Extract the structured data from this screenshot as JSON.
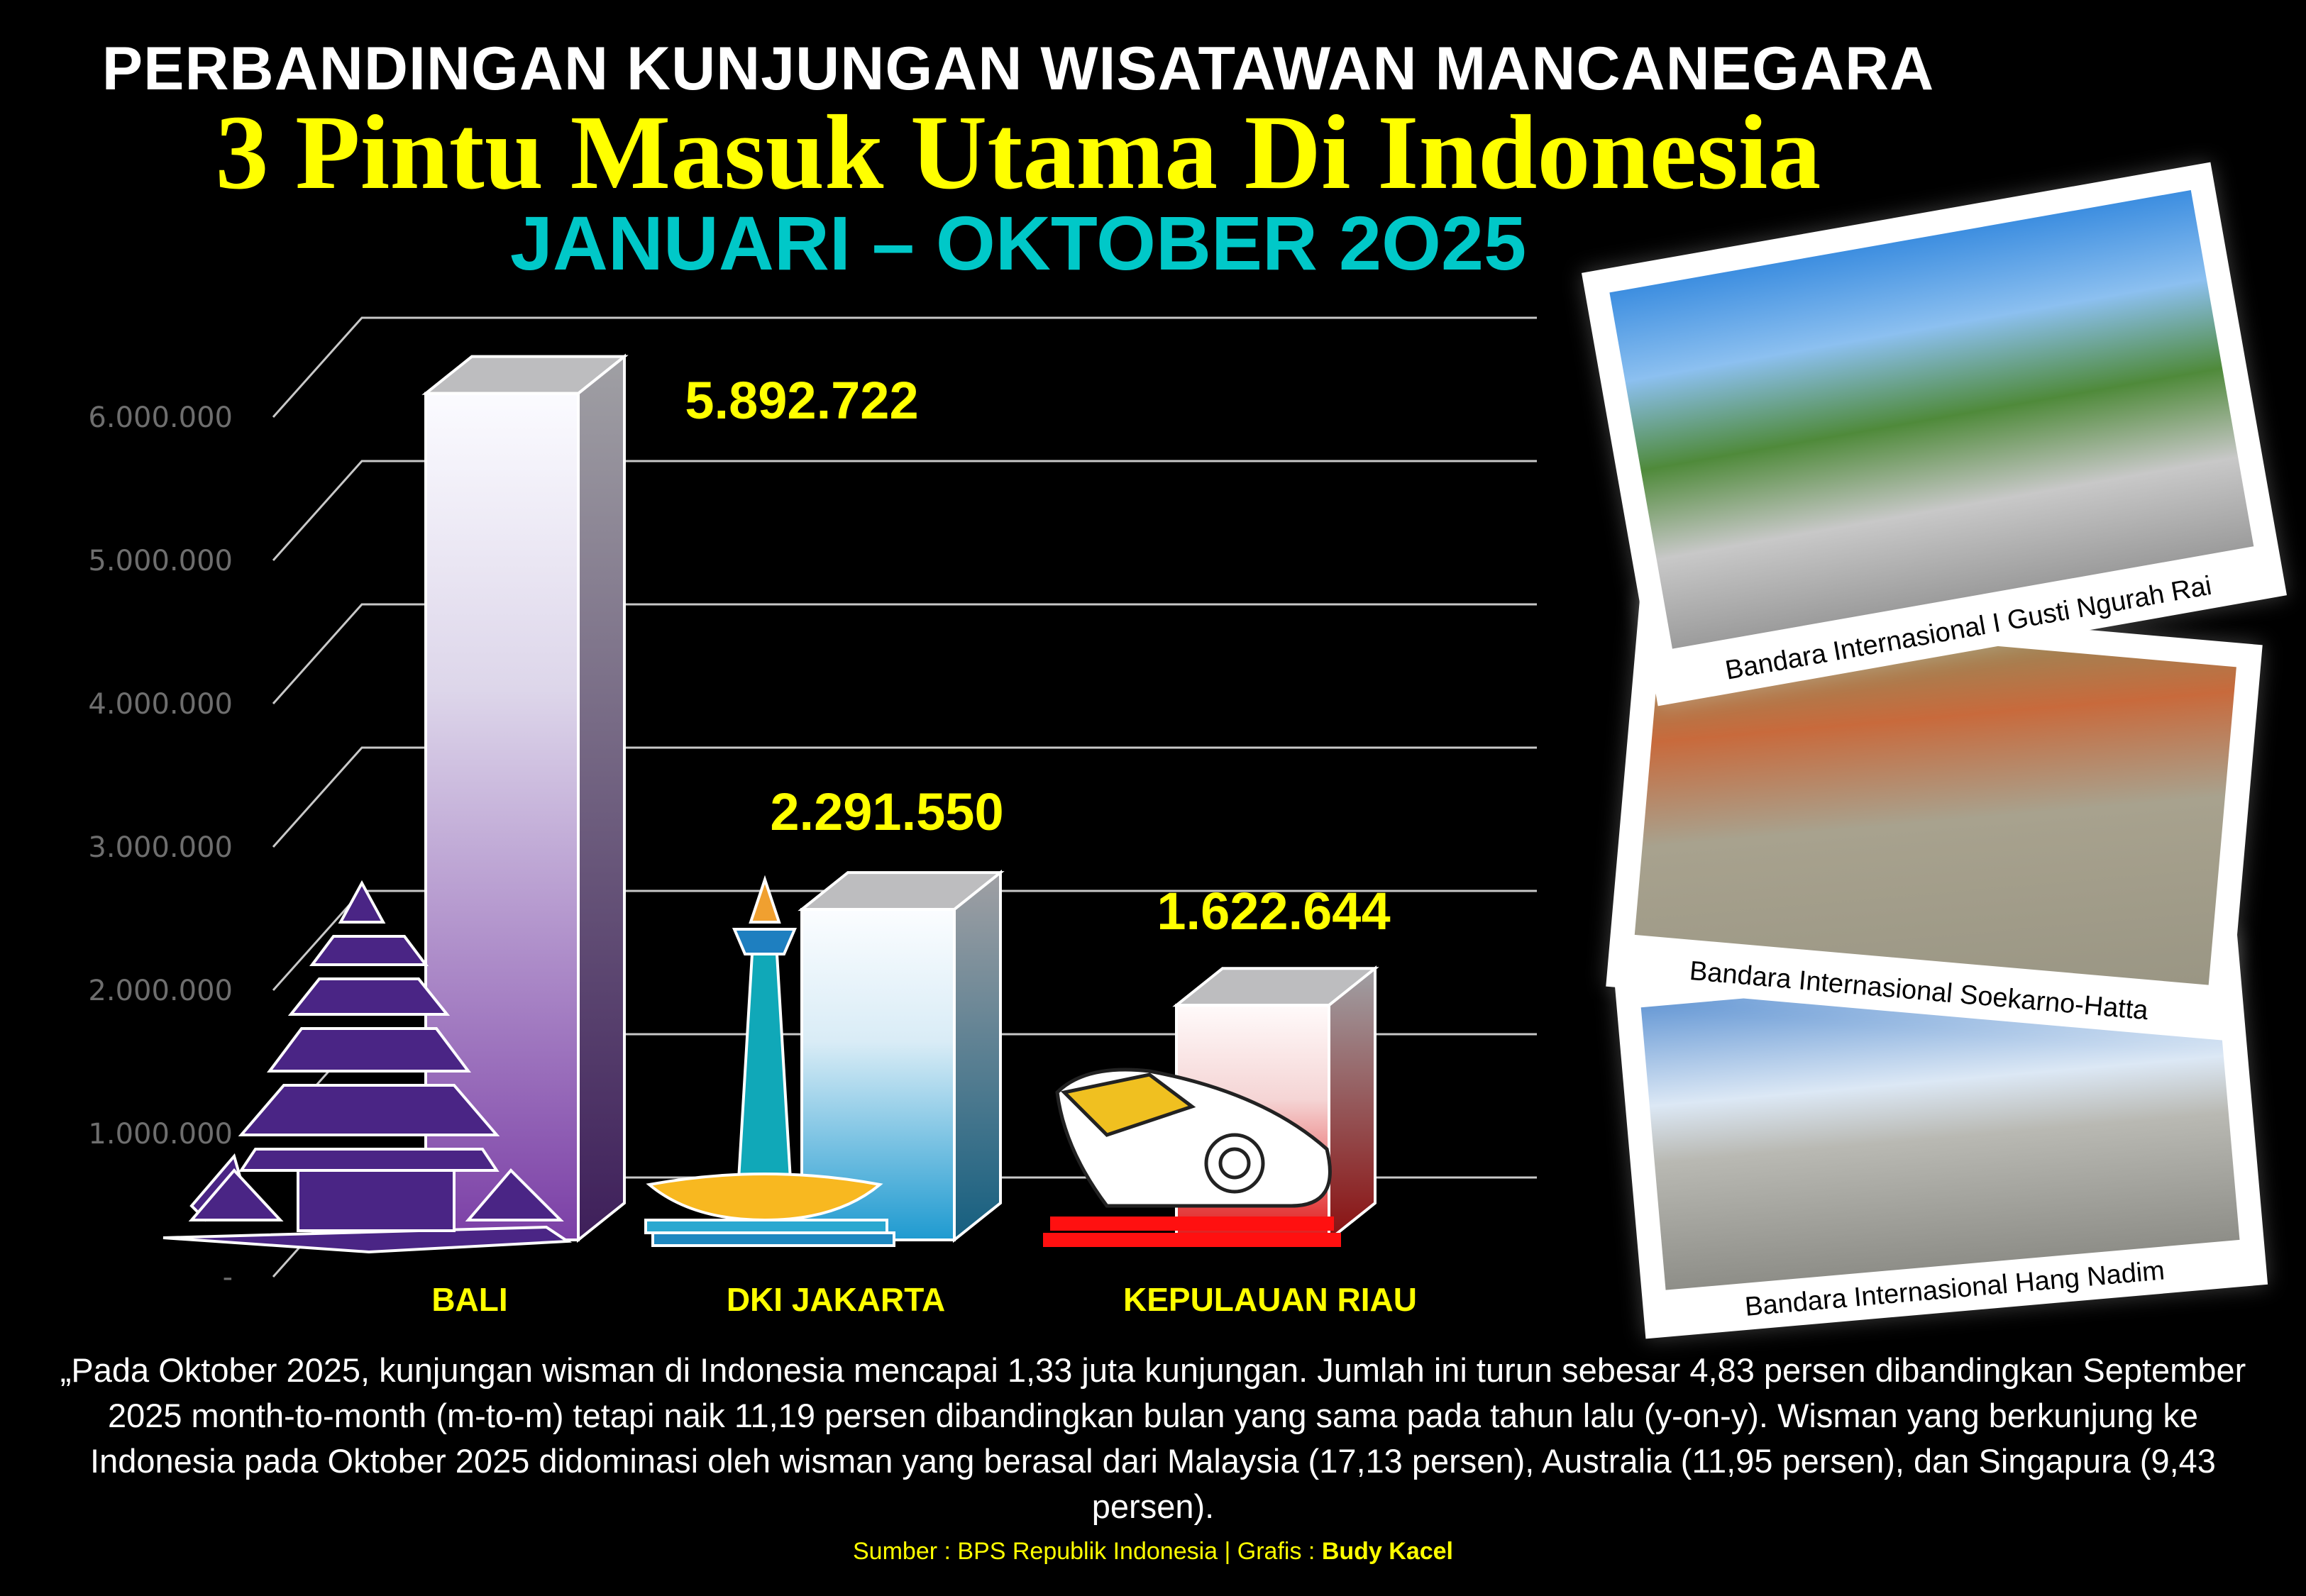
{
  "header": {
    "line1": "PERBANDINGAN KUNJUNGAN WISATAWAN MANCANEGARA",
    "line2": "3 Pintu Masuk Utama Di Indonesia",
    "line3": "JANUARI – OKTOBER 2O25"
  },
  "chart_data": {
    "type": "bar",
    "style": "3d-column",
    "categories": [
      "BALI",
      "DKI JAKARTA",
      "KEPULAUAN RIAU"
    ],
    "values": [
      5892722,
      2291550,
      1622644
    ],
    "data_labels": [
      "5.892.722",
      "2.291.550",
      "1.622.644"
    ],
    "yticks": [
      0,
      1000000,
      2000000,
      3000000,
      4000000,
      5000000,
      6000000
    ],
    "ytick_labels": [
      "-",
      "1.000.000",
      "2.000.000",
      "3.000.000",
      "4.000.000",
      "5.000.000",
      "6.000.000"
    ],
    "ylim": [
      0,
      6500000
    ],
    "grid": true,
    "bar_colors": [
      "#7b3fa6",
      "#1e9ad0",
      "#e01818"
    ],
    "label_color": "#ffff00",
    "icons": [
      "bali-temple-icon",
      "monas-monument-icon",
      "gonggong-shell-icon"
    ]
  },
  "photos": [
    {
      "caption": "Bandara Internasional I Gusti Ngurah Rai"
    },
    {
      "caption": "Bandara Internasional Soekarno-Hatta"
    },
    {
      "caption": "Bandara Internasional Hang Nadim"
    }
  ],
  "description": "„Pada Oktober 2025, kunjungan wisman di Indonesia mencapai 1,33 juta kunjungan. Jumlah ini turun sebesar 4,83 persen dibandingkan September 2025 month-to-month (m-to-m) tetapi naik 11,19 persen dibandingkan bulan yang sama pada tahun lalu (y-on-y). Wisman yang berkunjung ke Indonesia pada Oktober 2025 didominasi oleh wisman yang berasal dari Malaysia (17,13 persen), Australia (11,95 persen), dan Singapura (9,43 persen).",
  "footer": {
    "source": "Sumber : BPS Republik Indonesia  |  Grafis : ",
    "author": "Budy Kacel"
  }
}
